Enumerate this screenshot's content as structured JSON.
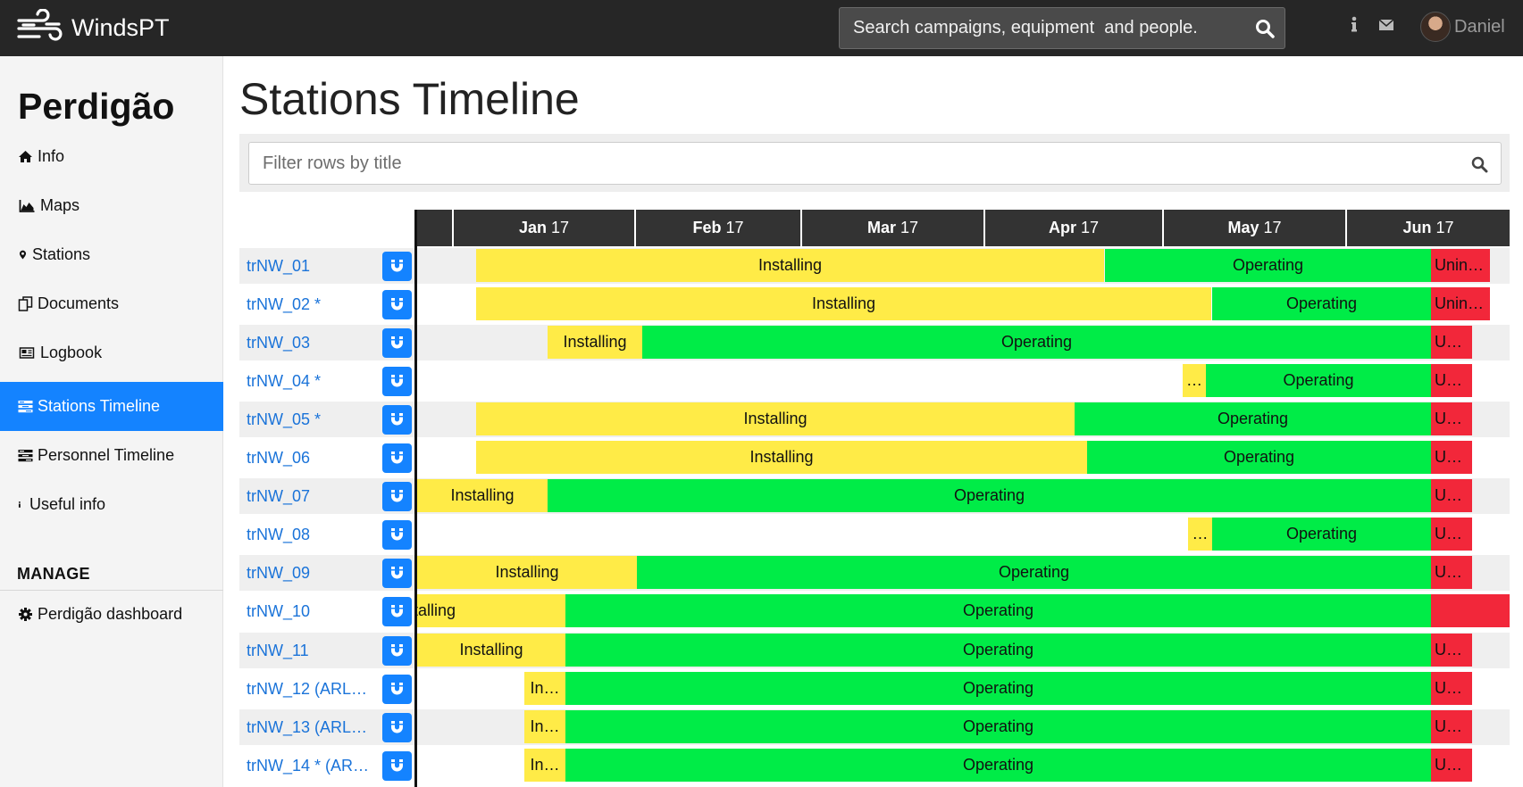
{
  "navbar": {
    "brand": "WindsPT",
    "search_placeholder": "Search campaigns, equipment  and people.",
    "user": "Daniel"
  },
  "sidebar": {
    "title": "Perdigão",
    "items": [
      {
        "label": "Info",
        "icon": "home-icon"
      },
      {
        "label": "Maps",
        "icon": "area-chart-icon"
      },
      {
        "label": "Stations",
        "icon": "map-marker-icon"
      },
      {
        "label": "Documents",
        "icon": "files-icon"
      },
      {
        "label": "Logbook",
        "icon": "newspaper-icon"
      },
      {
        "label": "Stations Timeline",
        "icon": "tasks-icon",
        "active": true
      },
      {
        "label": "Personnel Timeline",
        "icon": "tasks-icon"
      },
      {
        "label": "Useful info",
        "icon": "info-icon"
      }
    ],
    "manage_heading": "MANAGE",
    "manage_items": [
      {
        "label": "Perdigão dashboard",
        "icon": "gear-icon"
      }
    ]
  },
  "main": {
    "title": "Stations Timeline",
    "filter_placeholder": "Filter rows by title"
  },
  "timeline": {
    "months": [
      {
        "name": "Jan",
        "year": "17"
      },
      {
        "name": "Feb",
        "year": "17"
      },
      {
        "name": "Mar",
        "year": "17"
      },
      {
        "name": "Apr",
        "year": "17"
      },
      {
        "name": "May",
        "year": "17"
      },
      {
        "name": "Jun",
        "year": "17"
      }
    ],
    "rows": [
      {
        "title": "trNW_01",
        "bars": [
          {
            "label": "Installing"
          },
          {
            "label": "Operating"
          },
          {
            "label": "Unin…"
          }
        ]
      },
      {
        "title": "trNW_02 *",
        "bars": [
          {
            "label": "Installing"
          },
          {
            "label": "Operating"
          },
          {
            "label": "Unin…"
          }
        ]
      },
      {
        "title": "trNW_03",
        "bars": [
          {
            "label": "Installing"
          },
          {
            "label": "Operating"
          },
          {
            "label": "U…"
          }
        ]
      },
      {
        "title": "trNW_04 *",
        "bars": [
          {
            "label": "…"
          },
          {
            "label": "Operating"
          },
          {
            "label": "U…"
          }
        ]
      },
      {
        "title": "trNW_05 *",
        "bars": [
          {
            "label": "Installing"
          },
          {
            "label": "Operating"
          },
          {
            "label": "U…"
          }
        ]
      },
      {
        "title": "trNW_06",
        "bars": [
          {
            "label": "Installing"
          },
          {
            "label": "Operating"
          },
          {
            "label": "U…"
          }
        ]
      },
      {
        "title": "trNW_07",
        "bars": [
          {
            "label": "Installing"
          },
          {
            "label": "Operating"
          },
          {
            "label": "U…"
          }
        ]
      },
      {
        "title": "trNW_08",
        "bars": [
          {
            "label": "…"
          },
          {
            "label": "Operating"
          },
          {
            "label": "U…"
          }
        ]
      },
      {
        "title": "trNW_09",
        "bars": [
          {
            "label": "Installing"
          },
          {
            "label": "Operating"
          },
          {
            "label": "U…"
          }
        ]
      },
      {
        "title": "trNW_10",
        "bars": [
          {
            "label": "Installing"
          },
          {
            "label": "Operating"
          },
          {
            "label": ""
          }
        ]
      },
      {
        "title": "trNW_11",
        "bars": [
          {
            "label": "Installing"
          },
          {
            "label": "Operating"
          },
          {
            "label": "U…"
          }
        ]
      },
      {
        "title": "trNW_12 (ARL…",
        "bars": [
          {
            "label": "In…"
          },
          {
            "label": "Operating"
          },
          {
            "label": "U…"
          }
        ]
      },
      {
        "title": "trNW_13 (ARL…",
        "bars": [
          {
            "label": "In…"
          },
          {
            "label": "Operating"
          },
          {
            "label": "U…"
          }
        ]
      },
      {
        "title": "trNW_14 * (AR…",
        "bars": [
          {
            "label": "In…"
          },
          {
            "label": "Operating"
          },
          {
            "label": "U…"
          }
        ]
      }
    ]
  },
  "colors": {
    "installing": "#ffeb47",
    "operating": "#00ec47",
    "uninstalling": "#f2273a",
    "accent": "#1483ff"
  }
}
